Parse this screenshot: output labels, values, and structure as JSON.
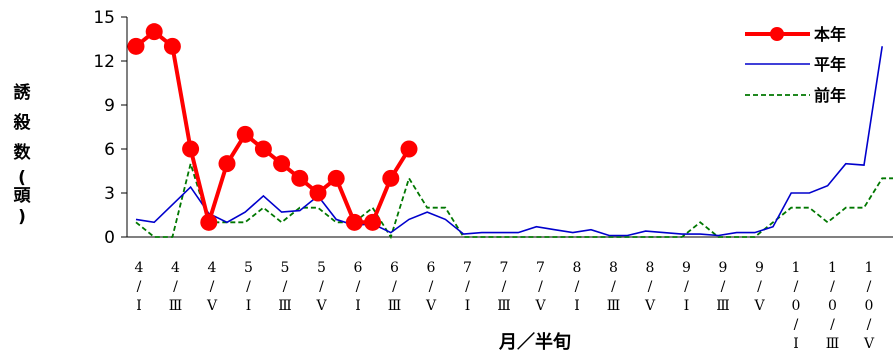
{
  "chart_data": {
    "type": "line",
    "xlabel": "月／半旬",
    "ylabel_chars": [
      "誘",
      "殺",
      "数",
      "(",
      "頭",
      ")"
    ],
    "ylim": [
      0,
      15
    ],
    "yticks": [
      "0",
      "3",
      "6",
      "9",
      "12",
      "15"
    ],
    "x_tick_labels": [
      {
        "m": [
          "4"
        ],
        "h": "Ⅰ"
      },
      {
        "m": [
          "4"
        ],
        "h": "Ⅲ"
      },
      {
        "m": [
          "4"
        ],
        "h": "Ⅴ"
      },
      {
        "m": [
          "5"
        ],
        "h": "Ⅰ"
      },
      {
        "m": [
          "5"
        ],
        "h": "Ⅲ"
      },
      {
        "m": [
          "5"
        ],
        "h": "Ⅴ"
      },
      {
        "m": [
          "6"
        ],
        "h": "Ⅰ"
      },
      {
        "m": [
          "6"
        ],
        "h": "Ⅲ"
      },
      {
        "m": [
          "6"
        ],
        "h": "Ⅴ"
      },
      {
        "m": [
          "7"
        ],
        "h": "Ⅰ"
      },
      {
        "m": [
          "7"
        ],
        "h": "Ⅲ"
      },
      {
        "m": [
          "7"
        ],
        "h": "Ⅴ"
      },
      {
        "m": [
          "8"
        ],
        "h": "Ⅰ"
      },
      {
        "m": [
          "8"
        ],
        "h": "Ⅲ"
      },
      {
        "m": [
          "8"
        ],
        "h": "Ⅴ"
      },
      {
        "m": [
          "9"
        ],
        "h": "Ⅰ"
      },
      {
        "m": [
          "9"
        ],
        "h": "Ⅲ"
      },
      {
        "m": [
          "9"
        ],
        "h": "Ⅴ"
      },
      {
        "m": [
          "1",
          "0"
        ],
        "h": "Ⅰ"
      },
      {
        "m": [
          "1",
          "0"
        ],
        "h": "Ⅲ"
      },
      {
        "m": [
          "1",
          "0"
        ],
        "h": "Ⅴ"
      }
    ],
    "series": [
      {
        "name": "本年",
        "color": "#ff0000",
        "style": "solid-marker",
        "values": [
          13,
          14,
          13,
          6,
          1,
          5,
          7,
          6,
          5,
          4,
          3,
          4,
          1,
          1,
          4,
          6
        ]
      },
      {
        "name": "平年",
        "color": "#0000cc",
        "style": "solid",
        "values": [
          1.2,
          1.0,
          2.2,
          3.4,
          1.6,
          1.0,
          1.7,
          2.8,
          1.7,
          1.8,
          2.8,
          1.2,
          0.8,
          0.9,
          0.3,
          1.2,
          1.7,
          1.2,
          0.2,
          0.3,
          0.3,
          0.3,
          0.7,
          0.5,
          0.3,
          0.5,
          0.1,
          0.1,
          0.4,
          0.3,
          0.2,
          0.2,
          0.1,
          0.3,
          0.3,
          0.7,
          3.0,
          3.0,
          3.5,
          5.0,
          4.9,
          13.0
        ]
      },
      {
        "name": "前年",
        "color": "#007700",
        "style": "dashed",
        "values": [
          1,
          0,
          0,
          5,
          1,
          1,
          1,
          2,
          1,
          2,
          2,
          1,
          1,
          2,
          0,
          4,
          2,
          2,
          0,
          0,
          0,
          0,
          0,
          0,
          0,
          0,
          0,
          0,
          0,
          0,
          0,
          1,
          0,
          0,
          0,
          1,
          2,
          2,
          1,
          2,
          2,
          4,
          4
        ]
      }
    ],
    "legend_position": "top-right"
  }
}
